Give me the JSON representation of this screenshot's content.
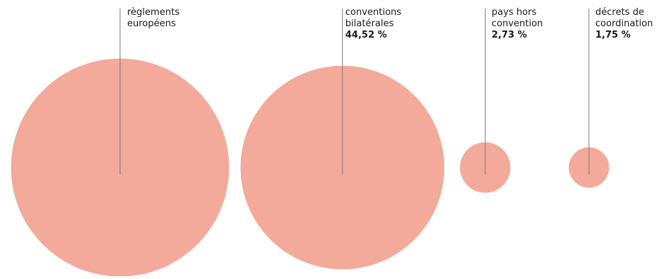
{
  "chart_data": {
    "type": "bubble",
    "unit": "%",
    "bubble_color": "#f3aa9a",
    "leader_color": "#7a7a7a",
    "categories": [
      {
        "label_lines": [
          "règlements",
          "européens"
        ],
        "value": null,
        "value_label": ""
      },
      {
        "label_lines": [
          "conventions",
          "bilatérales"
        ],
        "value": 44.52,
        "value_label": "44,52 %"
      },
      {
        "label_lines": [
          "pays hors",
          "convention"
        ],
        "value": 2.73,
        "value_label": "2,73 %"
      },
      {
        "label_lines": [
          "décrets de",
          "coordination"
        ],
        "value": 1.75,
        "value_label": "1,75 %"
      }
    ]
  }
}
